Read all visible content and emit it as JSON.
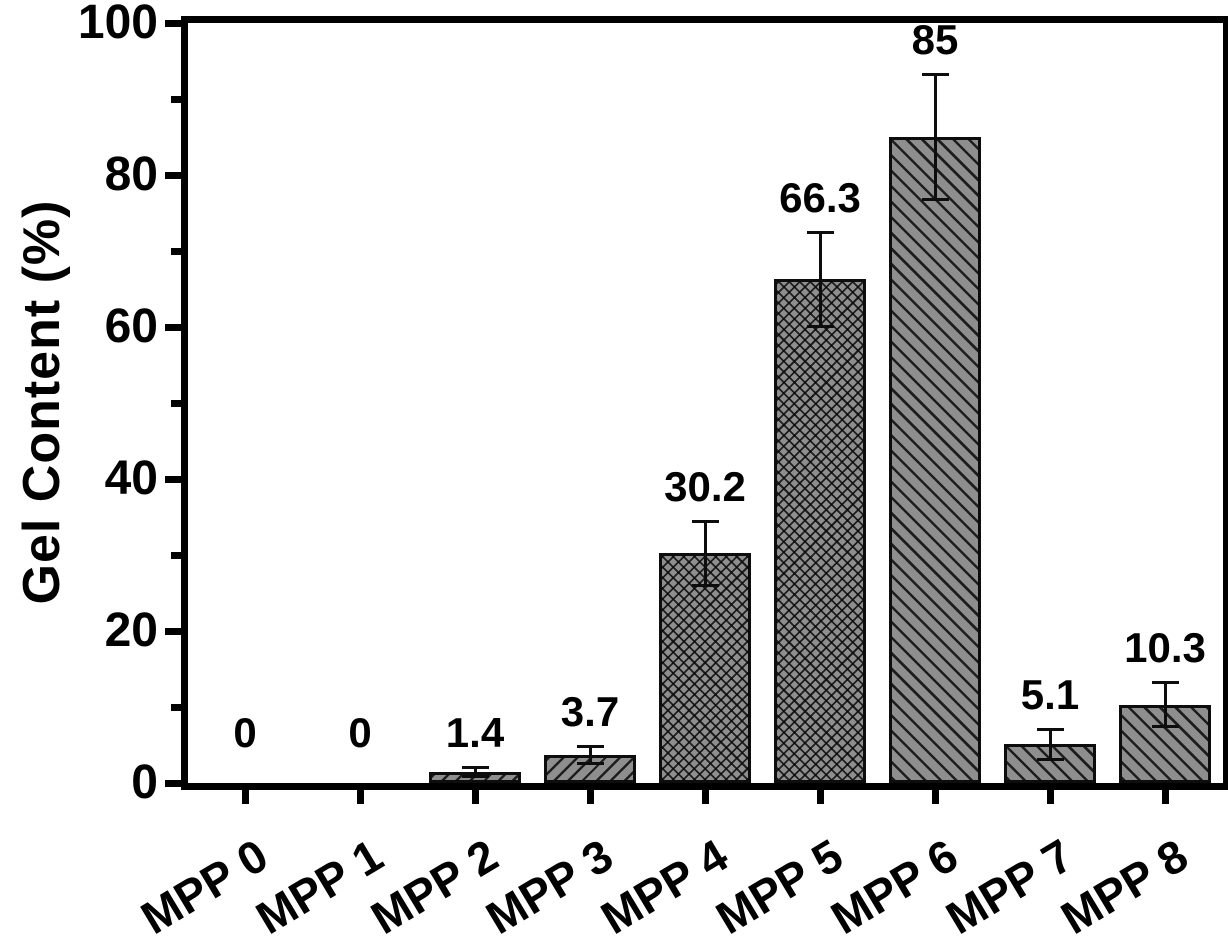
{
  "figure": {
    "background_color": "#ffffff",
    "axis_color": "#000000",
    "bar_fill_color": "#8e8e8e",
    "hatch_line_color": "#0d0d0d"
  },
  "chart_data": {
    "type": "bar",
    "title": "",
    "xlabel": "",
    "ylabel": "Gel Content (%)",
    "ylim": [
      0,
      100
    ],
    "y_major_ticks": [
      0,
      20,
      40,
      60,
      80,
      100
    ],
    "y_minor_ticks": [
      10,
      30,
      50,
      70,
      90
    ],
    "grid": false,
    "legend": null,
    "categories": [
      "MPP 0",
      "MPP 1",
      "MPP 2",
      "MPP 3",
      "MPP 4",
      "MPP 5",
      "MPP 6",
      "MPP 7",
      "MPP 8"
    ],
    "values": [
      0,
      0,
      1.4,
      3.7,
      30.2,
      66.3,
      85,
      5.1,
      10.3
    ],
    "value_labels": [
      "0",
      "0",
      "1.4",
      "3.7",
      "30.2",
      "66.3",
      "85",
      "5.1",
      "10.3"
    ],
    "error_bars": [
      0,
      0,
      0.4,
      0.9,
      4,
      6,
      8,
      1.8,
      2.7
    ],
    "hatches": [
      "none",
      "none",
      "forward-diagonal",
      "forward-diagonal",
      "crosshatch",
      "crosshatch",
      "back-diagonal",
      "back-diagonal",
      "back-diagonal"
    ]
  }
}
